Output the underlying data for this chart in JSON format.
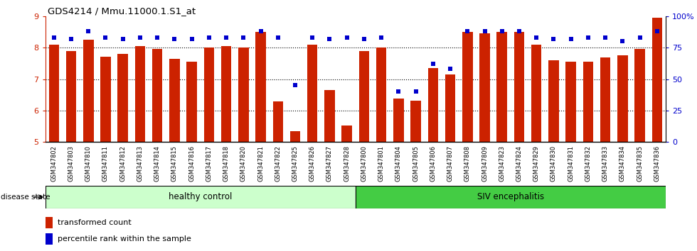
{
  "title": "GDS4214 / Mmu.11000.1.S1_at",
  "samples": [
    "GSM347802",
    "GSM347803",
    "GSM347810",
    "GSM347811",
    "GSM347812",
    "GSM347813",
    "GSM347814",
    "GSM347815",
    "GSM347816",
    "GSM347817",
    "GSM347818",
    "GSM347820",
    "GSM347821",
    "GSM347822",
    "GSM347825",
    "GSM347826",
    "GSM347827",
    "GSM347828",
    "GSM347800",
    "GSM347801",
    "GSM347804",
    "GSM347805",
    "GSM347806",
    "GSM347807",
    "GSM347808",
    "GSM347809",
    "GSM347823",
    "GSM347824",
    "GSM347829",
    "GSM347830",
    "GSM347831",
    "GSM347832",
    "GSM347833",
    "GSM347834",
    "GSM347835",
    "GSM347836"
  ],
  "bar_values": [
    8.1,
    7.9,
    8.25,
    7.72,
    7.8,
    8.05,
    7.95,
    7.65,
    7.55,
    8.0,
    8.05,
    8.0,
    8.5,
    6.28,
    5.35,
    8.1,
    6.65,
    5.52,
    7.9,
    8.0,
    6.38,
    6.3,
    7.35,
    7.15,
    8.5,
    8.45,
    8.5,
    8.5,
    8.1,
    7.6,
    7.55,
    7.55,
    7.7,
    7.75,
    7.95,
    8.95
  ],
  "percentile_values": [
    83,
    82,
    88,
    83,
    82,
    83,
    83,
    82,
    82,
    83,
    83,
    83,
    88,
    83,
    45,
    83,
    82,
    83,
    82,
    83,
    40,
    40,
    62,
    58,
    88,
    88,
    88,
    88,
    83,
    82,
    82,
    83,
    83,
    80,
    83,
    88
  ],
  "healthy_count": 18,
  "sick_count": 18,
  "healthy_label": "healthy control",
  "sick_label": "SIV encephalitis",
  "disease_state_label": "disease state",
  "ylim_left": [
    5,
    9
  ],
  "ylim_right": [
    0,
    100
  ],
  "yticks_left": [
    5,
    6,
    7,
    8,
    9
  ],
  "yticks_right": [
    0,
    25,
    50,
    75,
    100
  ],
  "ytick_labels_right": [
    "0",
    "25",
    "50",
    "75",
    "100%"
  ],
  "bar_color": "#cc2200",
  "dot_color": "#0000cc",
  "healthy_bg": "#ccffcc",
  "sick_bg": "#44cc44",
  "legend_bar_label": "transformed count",
  "legend_dot_label": "percentile rank within the sample"
}
